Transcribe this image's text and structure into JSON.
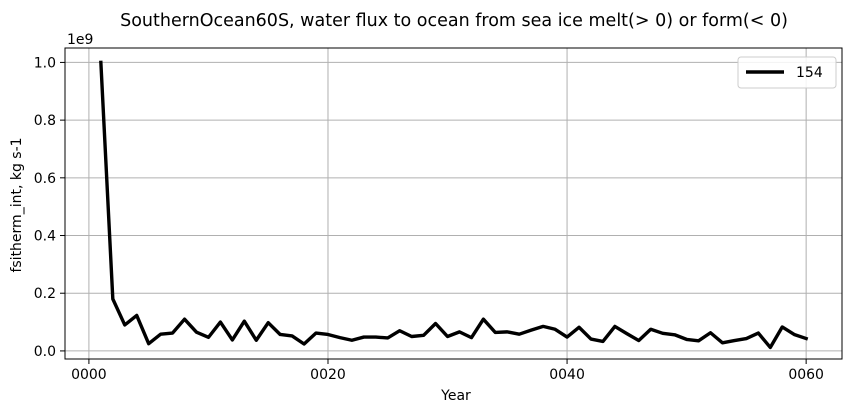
{
  "chart_data": {
    "type": "line",
    "title": "SouthernOcean60S, water flux to ocean from sea ice melt(> 0) or form(< 0)",
    "xlabel": "Year",
    "ylabel": "fsitherm_int, kg s-1",
    "y_offset_label": "1e9",
    "xlim": [
      -2,
      63
    ],
    "ylim": [
      -0.028,
      1.05
    ],
    "x_ticks": [
      0,
      20,
      40,
      60
    ],
    "x_tick_labels": [
      "0000",
      "0020",
      "0040",
      "0060"
    ],
    "y_ticks": [
      0.0,
      0.2,
      0.4,
      0.6,
      0.8,
      1.0
    ],
    "y_tick_labels": [
      "0.0",
      "0.2",
      "0.4",
      "0.6",
      "0.8",
      "1.0"
    ],
    "grid": true,
    "legend_position": "top-right",
    "series": [
      {
        "name": "154",
        "color": "#000000",
        "x": [
          1,
          2,
          3,
          4,
          5,
          6,
          7,
          8,
          9,
          10,
          11,
          12,
          13,
          14,
          15,
          16,
          17,
          18,
          19,
          20,
          21,
          22,
          23,
          24,
          25,
          26,
          27,
          28,
          29,
          30,
          31,
          32,
          33,
          34,
          35,
          36,
          37,
          38,
          39,
          40,
          41,
          42,
          43,
          44,
          45,
          46,
          47,
          48,
          49,
          50,
          51,
          52,
          53,
          54,
          55,
          56,
          57,
          58,
          59,
          60
        ],
        "values": [
          1.0,
          0.18,
          0.09,
          0.123,
          0.025,
          0.058,
          0.062,
          0.11,
          0.065,
          0.047,
          0.1,
          0.038,
          0.103,
          0.037,
          0.098,
          0.057,
          0.052,
          0.024,
          0.062,
          0.057,
          0.046,
          0.037,
          0.048,
          0.048,
          0.045,
          0.07,
          0.05,
          0.054,
          0.095,
          0.05,
          0.066,
          0.046,
          0.11,
          0.064,
          0.066,
          0.058,
          0.072,
          0.085,
          0.075,
          0.048,
          0.082,
          0.041,
          0.033,
          0.085,
          0.06,
          0.036,
          0.075,
          0.061,
          0.056,
          0.04,
          0.035,
          0.063,
          0.028,
          0.036,
          0.043,
          0.062,
          0.012,
          0.083,
          0.057,
          0.043
        ]
      }
    ]
  }
}
